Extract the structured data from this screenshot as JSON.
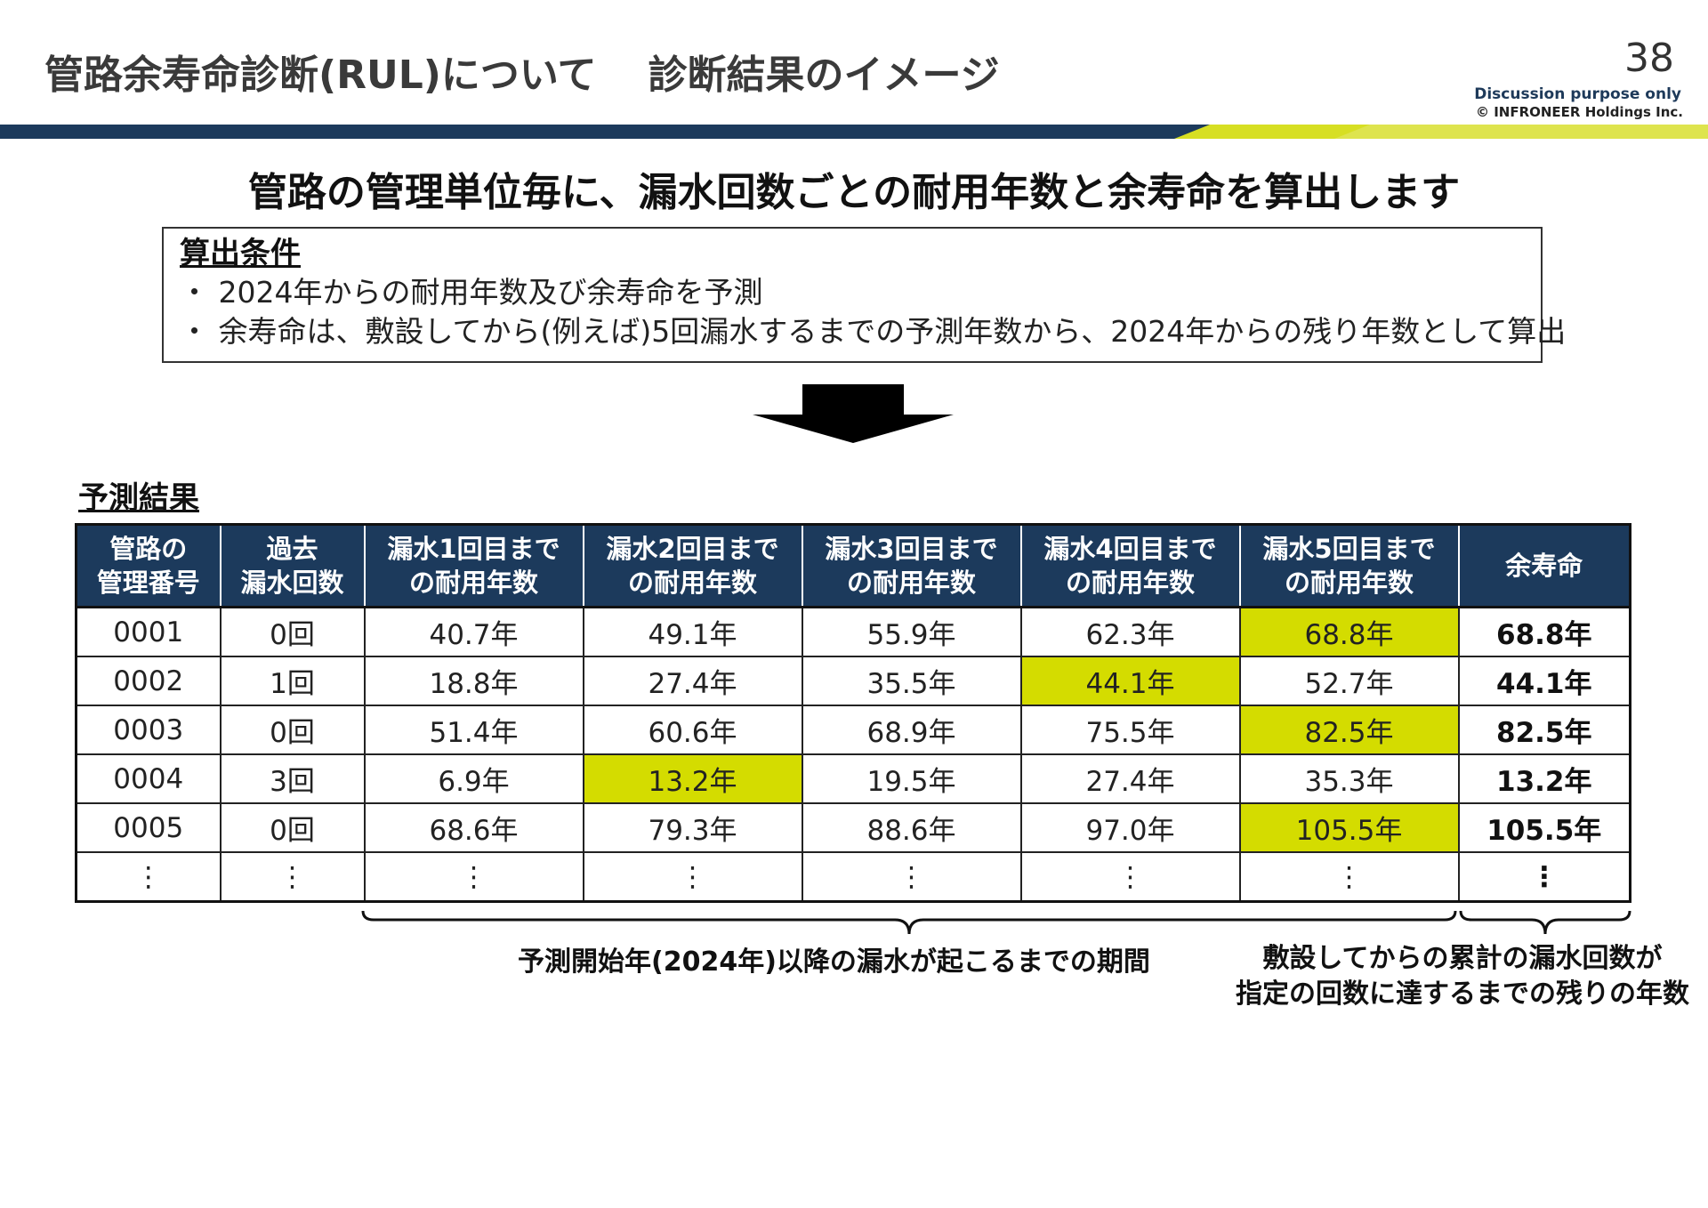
{
  "header": {
    "title": "管路余寿命診断(RUL)について",
    "subtitle": "診断結果のイメージ",
    "page_number": "38",
    "disclaimer": "Discussion purpose only",
    "copyright": "© INFRONEER Holdings Inc."
  },
  "colors": {
    "navy": "#1c3a5c",
    "highlight": "#d4dc00",
    "accent_bar": "#d7df23"
  },
  "headline": "管路の管理単位毎に、漏水回数ごとの耐用年数と余寿命を算出します",
  "conditions": {
    "title": "算出条件",
    "lines": [
      "・ 2024年からの耐用年数及び余寿命を予測",
      "・ 余寿命は、敷設してから(例えば)5回漏水するまでの予測年数から、2024年からの残り年数として算出"
    ]
  },
  "arrow_icon": "down-arrow-icon",
  "results": {
    "title": "予測結果",
    "headers": [
      {
        "line1": "管路の",
        "line2": "管理番号"
      },
      {
        "line1": "過去",
        "line2": "漏水回数"
      },
      {
        "line1": "漏水1回目まで",
        "line2": "の耐用年数"
      },
      {
        "line1": "漏水2回目まで",
        "line2": "の耐用年数"
      },
      {
        "line1": "漏水3回目まで",
        "line2": "の耐用年数"
      },
      {
        "line1": "漏水4回目まで",
        "line2": "の耐用年数"
      },
      {
        "line1": "漏水5回目まで",
        "line2": "の耐用年数"
      },
      {
        "line1": "余寿命",
        "line2": ""
      }
    ],
    "rows": [
      {
        "id": "0001",
        "past": "0回",
        "y1": "40.7年",
        "y2": "49.1年",
        "y3": "55.9年",
        "y4": "62.3年",
        "y5": "68.8年",
        "rul": "68.8年",
        "highlight_col": 5
      },
      {
        "id": "0002",
        "past": "1回",
        "y1": "18.8年",
        "y2": "27.4年",
        "y3": "35.5年",
        "y4": "44.1年",
        "y5": "52.7年",
        "rul": "44.1年",
        "highlight_col": 4
      },
      {
        "id": "0003",
        "past": "0回",
        "y1": "51.4年",
        "y2": "60.6年",
        "y3": "68.9年",
        "y4": "75.5年",
        "y5": "82.5年",
        "rul": "82.5年",
        "highlight_col": 5
      },
      {
        "id": "0004",
        "past": "3回",
        "y1": "6.9年",
        "y2": "13.2年",
        "y3": "19.5年",
        "y4": "27.4年",
        "y5": "35.3年",
        "rul": "13.2年",
        "highlight_col": 2
      },
      {
        "id": "0005",
        "past": "0回",
        "y1": "68.6年",
        "y2": "79.3年",
        "y3": "88.6年",
        "y4": "97.0年",
        "y5": "105.5年",
        "rul": "105.5年",
        "highlight_col": 5
      },
      {
        "id": "⋮",
        "past": "⋮",
        "y1": "⋮",
        "y2": "⋮",
        "y3": "⋮",
        "y4": "⋮",
        "y5": "⋮",
        "rul": "⋮",
        "highlight_col": 0
      }
    ]
  },
  "notes": {
    "period": "予測開始年(2024年)以降の漏水が起こるまでの期間",
    "remaining_line1": "敷設してからの累計の漏水回数が",
    "remaining_line2": "指定の回数に達するまでの残りの年数"
  }
}
